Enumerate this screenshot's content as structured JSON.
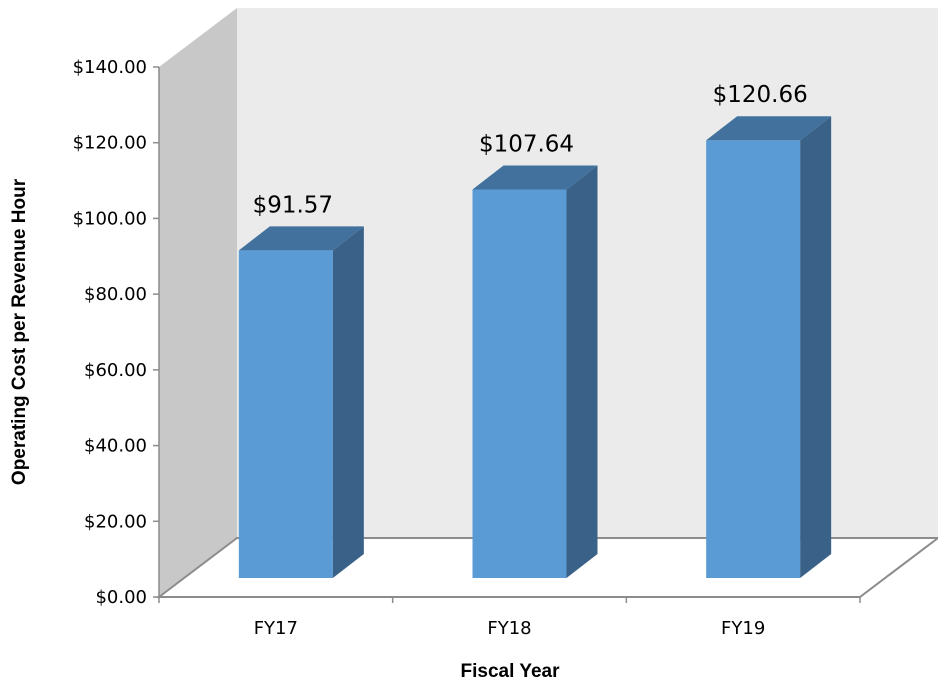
{
  "chart_data": {
    "type": "bar",
    "title": "",
    "xlabel": "Fiscal Year",
    "ylabel": "Operating Cost per Revenue Hour",
    "categories": [
      "FY17",
      "FY18",
      "FY19"
    ],
    "values": [
      91.57,
      107.64,
      120.66
    ],
    "value_labels": [
      "$91.57",
      "$107.64",
      "$120.66"
    ],
    "ylim": [
      0,
      140
    ],
    "y_ticks": [
      0,
      20,
      40,
      60,
      80,
      100,
      120,
      140
    ],
    "y_tick_labels": [
      "$0.00",
      "$20.00",
      "$40.00",
      "$60.00",
      "$80.00",
      "$100.00",
      "$120.00",
      "$140.00"
    ],
    "grid": false,
    "legend": "none",
    "style": "3d-column",
    "colors": {
      "bar_front": "#5b9bd5",
      "bar_top": "#41719c",
      "bar_side": "#3a6289",
      "back_wall": "#ebebeb",
      "side_wall": "#c8c8c8",
      "axis": "#8c8c8c"
    }
  }
}
